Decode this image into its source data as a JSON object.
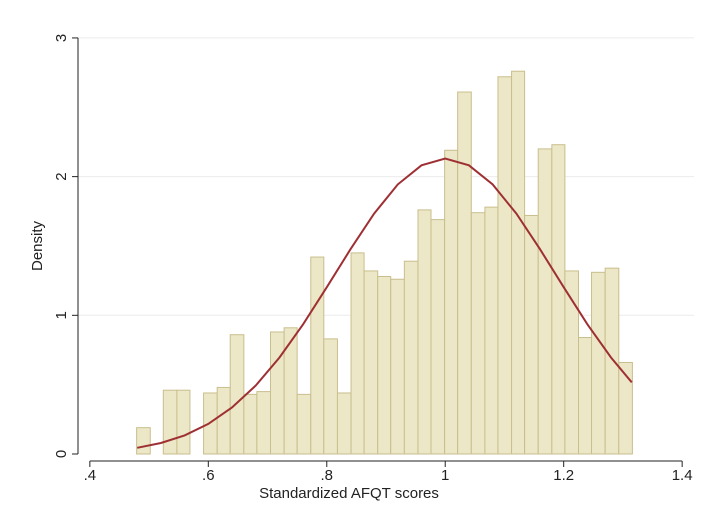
{
  "chart_data": {
    "type": "histogram",
    "x_label": "Standardized AFQT scores",
    "y_label": "Density",
    "bins": [
      0.479,
      0.502,
      0.524,
      0.547,
      0.569,
      0.592,
      0.615,
      0.637,
      0.66,
      0.682,
      0.705,
      0.728,
      0.75,
      0.773,
      0.795,
      0.818,
      0.841,
      0.863,
      0.886,
      0.908,
      0.931,
      0.954,
      0.976,
      0.999,
      1.021,
      1.044,
      1.067,
      1.089,
      1.112,
      1.134,
      1.157,
      1.18,
      1.202,
      1.225,
      1.247,
      1.27,
      1.293,
      1.316
    ],
    "values": [
      0.19,
      0,
      0.46,
      0.46,
      0,
      0.44,
      0.48,
      0.86,
      0.43,
      0.45,
      0.88,
      0.91,
      0.43,
      1.42,
      0.83,
      0.44,
      1.45,
      1.32,
      1.28,
      1.26,
      1.39,
      1.76,
      1.69,
      2.19,
      2.61,
      1.74,
      1.78,
      2.72,
      2.76,
      1.72,
      2.2,
      2.23,
      1.32,
      0.84,
      1.31,
      1.34,
      0.66
    ],
    "color": "#ece7c6",
    "edge_color": "#c9be8d",
    "curve": {
      "color": "#9e3034",
      "x": [
        0.48,
        0.52,
        0.56,
        0.6,
        0.64,
        0.68,
        0.72,
        0.76,
        0.8,
        0.84,
        0.88,
        0.92,
        0.96,
        1.0,
        1.04,
        1.08,
        1.12,
        1.16,
        1.2,
        1.24,
        1.28,
        1.315
      ],
      "values": [
        0.045,
        0.079,
        0.134,
        0.217,
        0.335,
        0.493,
        0.695,
        0.935,
        1.203,
        1.477,
        1.734,
        1.944,
        2.082,
        2.13,
        2.082,
        1.944,
        1.734,
        1.477,
        1.203,
        0.935,
        0.695,
        0.516
      ]
    },
    "xlim": [
      0.38,
      1.42
    ],
    "ylim": [
      0,
      3.05
    ],
    "xticks": [
      {
        "value": 0.4,
        "label": ".4"
      },
      {
        "value": 0.6,
        "label": ".6"
      },
      {
        "value": 0.8,
        "label": ".8"
      },
      1,
      1.2,
      1.4
    ],
    "yticks": [
      0,
      1,
      2,
      3
    ],
    "grid": true
  }
}
